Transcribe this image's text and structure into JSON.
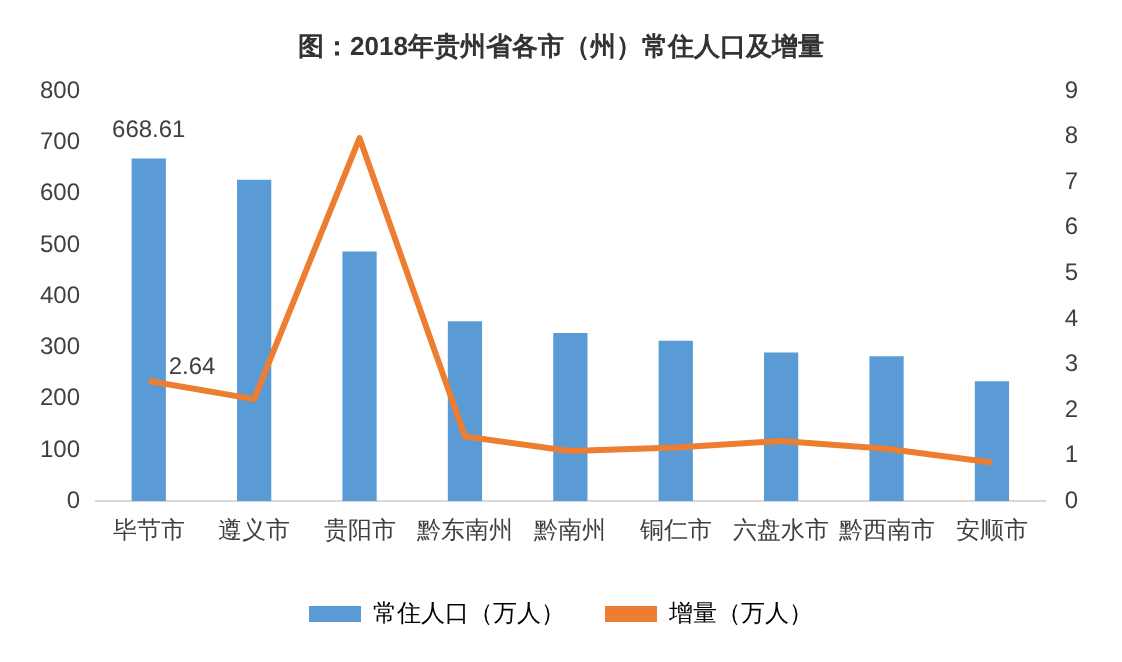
{
  "chart_data": {
    "type": "bar",
    "title": "图：2018年贵州省各市（州）常住人口及增量",
    "categories": [
      "毕节市",
      "遵义市",
      "贵阳市",
      "黔东南州",
      "黔南州",
      "铜仁市",
      "六盘水市",
      "黔西南市",
      "安顺市"
    ],
    "series": [
      {
        "name": "常住人口（万人）",
        "color": "#5b9bd5",
        "values": [
          668.61,
          627,
          487,
          351,
          328,
          313,
          290,
          283,
          234
        ],
        "value_labels": [
          "668.61",
          null,
          null,
          null,
          null,
          null,
          null,
          null,
          null
        ]
      },
      {
        "name": "增量（万人）",
        "type": "line",
        "axis": "y2",
        "color": "#ed7d31",
        "values": [
          2.64,
          2.24,
          7.97,
          1.42,
          1.1,
          1.18,
          1.32,
          1.15,
          0.85
        ],
        "value_labels": [
          "2.64",
          null,
          null,
          null,
          null,
          null,
          null,
          null,
          null
        ],
        "marker": "none"
      }
    ],
    "ylim": [
      0,
      800
    ],
    "yticks": [
      0,
      100,
      200,
      300,
      400,
      500,
      600,
      700,
      800
    ],
    "y2lim": [
      0,
      9
    ],
    "y2ticks": [
      0,
      1,
      2,
      3,
      4,
      5,
      6,
      7,
      8,
      9
    ],
    "grid": false,
    "legend": "bottom"
  }
}
